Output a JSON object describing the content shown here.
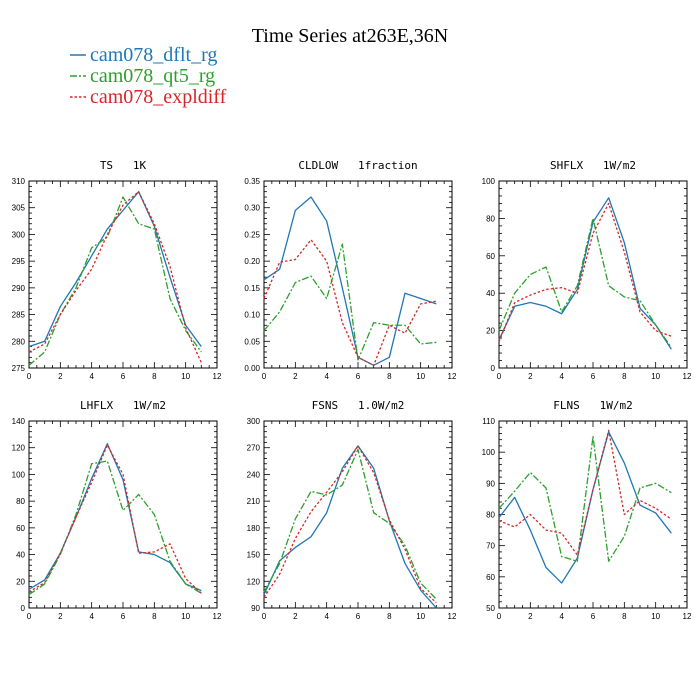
{
  "title": "Time Series at263E,36N",
  "legend": [
    {
      "name": "cam078_dflt_rg",
      "color": "#1f77b4",
      "dash": "solid"
    },
    {
      "name": "cam078_qt5_rg",
      "color": "#2ca02c",
      "dash": "dashdot"
    },
    {
      "name": "cam078_expldiff",
      "color": "#d62728",
      "dash": "dotted"
    }
  ],
  "chart_data": [
    {
      "type": "line",
      "title": "TS   1K",
      "xlim": [
        0,
        12
      ],
      "ylim": [
        275,
        310
      ],
      "xticks": [
        0,
        2,
        4,
        6,
        8,
        10,
        12
      ],
      "yticks": [
        275,
        280,
        285,
        290,
        295,
        300,
        305,
        310
      ],
      "x": [
        0,
        1,
        2,
        3,
        4,
        5,
        6,
        7,
        8,
        9,
        10,
        11
      ],
      "series": [
        {
          "name": "cam078_dflt_rg",
          "values": [
            279,
            280,
            286.5,
            291,
            296,
            301,
            304.5,
            308,
            301.5,
            292,
            283,
            279
          ]
        },
        {
          "name": "cam078_qt5_rg",
          "values": [
            275.5,
            278,
            285,
            290,
            297.5,
            299.5,
            307,
            302,
            301,
            288,
            282,
            278
          ]
        },
        {
          "name": "cam078_expldiff",
          "values": [
            278,
            279.5,
            285,
            289.5,
            293.5,
            300,
            305.5,
            308,
            302,
            294,
            282.5,
            276
          ]
        }
      ]
    },
    {
      "type": "line",
      "title": "CLDLOW   1fraction",
      "xlim": [
        0,
        12
      ],
      "ylim": [
        0,
        0.35
      ],
      "xticks": [
        0,
        2,
        4,
        6,
        8,
        10,
        12
      ],
      "yticks": [
        0.0,
        0.05,
        0.1,
        0.15,
        0.2,
        0.25,
        0.3,
        0.35
      ],
      "ytick_labels": [
        "0.00",
        "0.05",
        "0.10",
        "0.15",
        "0.20",
        "0.25",
        "0.30",
        "0.35"
      ],
      "x": [
        0,
        1,
        2,
        3,
        4,
        5,
        6,
        7,
        8,
        9,
        10,
        11
      ],
      "series": [
        {
          "name": "cam078_dflt_rg",
          "values": [
            0.165,
            0.185,
            0.295,
            0.32,
            0.275,
            0.15,
            0.02,
            0.005,
            0.02,
            0.14,
            0.13,
            0.12
          ]
        },
        {
          "name": "cam078_qt5_rg",
          "values": [
            0.07,
            0.105,
            0.16,
            0.172,
            0.13,
            0.232,
            0.015,
            0.085,
            0.08,
            0.08,
            0.045,
            0.048
          ]
        },
        {
          "name": "cam078_expldiff",
          "values": [
            0.13,
            0.198,
            0.203,
            0.24,
            0.2,
            0.085,
            0.02,
            0.005,
            0.08,
            0.065,
            0.12,
            0.125
          ]
        }
      ]
    },
    {
      "type": "line",
      "title": "SHFLX   1W/m2",
      "xlim": [
        0,
        12
      ],
      "ylim": [
        0,
        100
      ],
      "xticks": [
        0,
        2,
        4,
        6,
        8,
        10,
        12
      ],
      "yticks": [
        0,
        20,
        40,
        60,
        80,
        100
      ],
      "x": [
        0,
        1,
        2,
        3,
        4,
        5,
        6,
        7,
        8,
        9,
        10,
        11
      ],
      "series": [
        {
          "name": "cam078_dflt_rg",
          "values": [
            15,
            33,
            35,
            33,
            29,
            42,
            78,
            91,
            67,
            32,
            23,
            10
          ]
        },
        {
          "name": "cam078_qt5_rg",
          "values": [
            20,
            40,
            50,
            54,
            30,
            44,
            80,
            44,
            38,
            36,
            23,
            11
          ]
        },
        {
          "name": "cam078_expldiff",
          "values": [
            14,
            35,
            39,
            42,
            43,
            40,
            72,
            88,
            62,
            30,
            20,
            17
          ]
        }
      ]
    },
    {
      "type": "line",
      "title": "LHFLX   1W/m2",
      "xlim": [
        0,
        12
      ],
      "ylim": [
        0,
        140
      ],
      "xticks": [
        0,
        2,
        4,
        6,
        8,
        10,
        12
      ],
      "yticks": [
        0,
        20,
        40,
        60,
        80,
        100,
        120,
        140
      ],
      "x": [
        0,
        1,
        2,
        3,
        4,
        5,
        6,
        7,
        8,
        9,
        10,
        11
      ],
      "series": [
        {
          "name": "cam078_dflt_rg",
          "values": [
            14,
            21,
            41,
            68,
            97,
            123,
            96,
            42,
            40,
            34,
            18,
            13
          ]
        },
        {
          "name": "cam078_qt5_rg",
          "values": [
            10,
            18,
            40,
            70,
            108,
            110,
            73,
            85,
            70,
            35,
            18,
            11
          ]
        },
        {
          "name": "cam078_expldiff",
          "values": [
            12,
            19,
            41,
            68,
            94,
            122,
            100,
            41,
            42,
            48,
            22,
            11
          ]
        }
      ]
    },
    {
      "type": "line",
      "title": "FSNS   1.0W/m2",
      "xlim": [
        0,
        12
      ],
      "ylim": [
        90,
        300
      ],
      "xticks": [
        0,
        2,
        4,
        6,
        8,
        10,
        12
      ],
      "yticks": [
        90,
        120,
        150,
        180,
        210,
        240,
        270,
        300
      ],
      "x": [
        0,
        1,
        2,
        3,
        4,
        5,
        6,
        7,
        8,
        9,
        10,
        11
      ],
      "series": [
        {
          "name": "cam078_dflt_rg",
          "values": [
            105,
            143,
            158,
            170,
            197,
            247,
            272,
            247,
            188,
            140,
            110,
            90
          ]
        },
        {
          "name": "cam078_qt5_rg",
          "values": [
            108,
            140,
            190,
            221,
            217,
            228,
            268,
            197,
            185,
            160,
            118,
            100
          ]
        },
        {
          "name": "cam078_expldiff",
          "values": [
            102,
            128,
            168,
            198,
            220,
            243,
            272,
            242,
            189,
            156,
            112,
            96
          ]
        }
      ]
    },
    {
      "type": "line",
      "title": "FLNS   1W/m2",
      "xlim": [
        0,
        12
      ],
      "ylim": [
        50,
        110
      ],
      "xticks": [
        0,
        2,
        4,
        6,
        8,
        10,
        12
      ],
      "yticks": [
        50,
        60,
        70,
        80,
        90,
        100,
        110
      ],
      "x": [
        0,
        1,
        2,
        3,
        4,
        5,
        6,
        7,
        8,
        9,
        10,
        11
      ],
      "series": [
        {
          "name": "cam078_dflt_rg",
          "values": [
            79,
            85.5,
            75,
            63,
            58,
            66,
            88,
            106.5,
            96.5,
            83,
            80.5,
            74
          ]
        },
        {
          "name": "cam078_qt5_rg",
          "values": [
            82,
            87.5,
            93.5,
            88.5,
            66.5,
            65,
            105,
            65,
            73,
            88.5,
            90,
            87
          ]
        },
        {
          "name": "cam078_expldiff",
          "values": [
            78,
            76,
            80,
            75,
            74,
            67,
            88,
            107,
            80,
            84.5,
            82,
            78.5
          ]
        }
      ]
    }
  ]
}
